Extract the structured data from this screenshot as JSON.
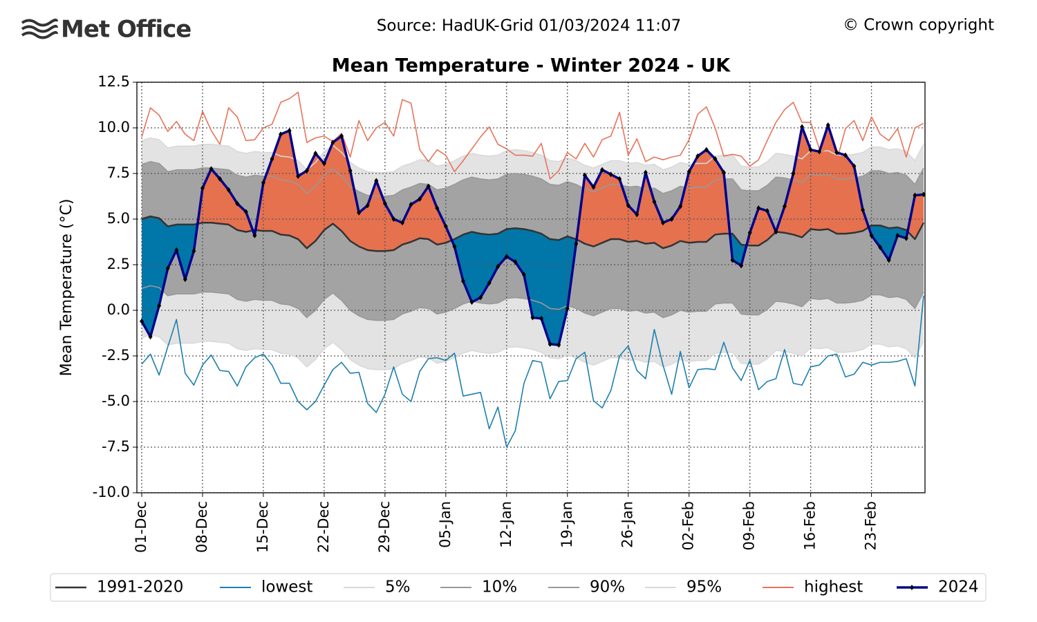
{
  "header": {
    "logo": "Met Office",
    "source": "Source: HadUK-Grid 01/03/2024 11:07",
    "copyright": "© Crown copyright"
  },
  "chart_data": {
    "type": "line",
    "title": "Mean Temperature - Winter 2024 - UK",
    "y_label": "Mean Temperature (°C)",
    "categories": [
      "01-Dec",
      null,
      null,
      null,
      null,
      null,
      null,
      "08-Dec",
      null,
      null,
      null,
      null,
      null,
      null,
      "15-Dec",
      null,
      null,
      null,
      null,
      null,
      null,
      "22-Dec",
      null,
      null,
      null,
      null,
      null,
      null,
      "29-Dec",
      null,
      null,
      null,
      null,
      null,
      null,
      "05-Jan",
      null,
      null,
      null,
      null,
      null,
      null,
      "12-Jan",
      null,
      null,
      null,
      null,
      null,
      null,
      "19-Jan",
      null,
      null,
      null,
      null,
      null,
      null,
      "26-Jan",
      null,
      null,
      null,
      null,
      null,
      null,
      "02-Feb",
      null,
      null,
      null,
      null,
      null,
      null,
      "09-Feb",
      null,
      null,
      null,
      null,
      null,
      null,
      "16-Feb",
      null,
      null,
      null,
      null,
      null,
      null,
      "23-Feb",
      null,
      null,
      null,
      null,
      null,
      null
    ],
    "ylim": [
      -10,
      12.5
    ],
    "yticks": [
      {
        "value": -10,
        "label": "-10.0"
      },
      -7.5,
      {
        "value": -5,
        "label": "-5.0"
      },
      -2.5,
      {
        "value": 0,
        "label": "0.0"
      },
      2.5,
      {
        "value": 5,
        "label": "5.0"
      },
      7.5,
      {
        "value": 10,
        "label": "10.0"
      },
      12.5
    ],
    "grid": true,
    "fill_colors": {
      "above": "#e5714f",
      "below": "#0077a8",
      "outer_band": "#e3e3e3",
      "inner_band": "#a3a3a3"
    },
    "series": [
      {
        "name": "1991-2020",
        "color": "#333333",
        "values": [
          5.0,
          5.15,
          5.05,
          4.6,
          4.7,
          4.7,
          4.7,
          4.8,
          4.8,
          4.75,
          4.7,
          4.4,
          4.3,
          4.4,
          4.35,
          4.35,
          4.15,
          4.1,
          3.9,
          3.4,
          3.8,
          4.4,
          4.75,
          4.35,
          3.8,
          3.5,
          3.3,
          3.25,
          3.25,
          3.3,
          3.6,
          3.75,
          3.95,
          3.9,
          3.6,
          3.7,
          3.9,
          4.15,
          4.3,
          4.2,
          4.15,
          4.2,
          4.45,
          4.5,
          4.45,
          4.35,
          4.2,
          3.9,
          3.85,
          4.05,
          3.9,
          3.65,
          3.5,
          3.7,
          3.9,
          3.9,
          3.75,
          3.8,
          3.65,
          3.7,
          3.4,
          3.55,
          3.8,
          3.7,
          3.75,
          3.75,
          4.15,
          4.2,
          4.2,
          3.6,
          3.55,
          3.55,
          3.85,
          4.3,
          4.25,
          4.15,
          4.0,
          4.45,
          4.4,
          4.45,
          4.2,
          4.2,
          4.25,
          4.35,
          4.65,
          4.65,
          4.5,
          4.55,
          4.4,
          3.9,
          4.8
        ]
      },
      {
        "name": "lowest",
        "color": "#1c7fae",
        "values": [
          -2.95,
          -2.4,
          -3.55,
          -2.0,
          -0.5,
          -3.45,
          -4.1,
          -3.0,
          -2.45,
          -3.3,
          -3.35,
          -4.15,
          -3.1,
          -2.6,
          -2.4,
          -3.0,
          -4.0,
          -4.0,
          -5.0,
          -5.45,
          -5.0,
          -4.1,
          -3.25,
          -2.85,
          -3.45,
          -3.4,
          -5.1,
          -5.6,
          -4.6,
          -3.1,
          -4.6,
          -5.0,
          -3.35,
          -2.65,
          -2.6,
          -2.75,
          -2.35,
          -4.7,
          -4.6,
          -4.5,
          -6.5,
          -5.3,
          -7.5,
          -6.6,
          -4.0,
          -2.75,
          -2.85,
          -4.85,
          -3.9,
          -3.85,
          -2.65,
          -2.3,
          -4.95,
          -5.35,
          -4.4,
          -2.5,
          -1.95,
          -3.3,
          -3.75,
          -1.05,
          -3.0,
          -4.6,
          -2.25,
          -4.25,
          -3.25,
          -3.2,
          -3.25,
          -1.75,
          -3.15,
          -3.85,
          -2.75,
          -4.35,
          -3.9,
          -3.75,
          -2.15,
          -4.0,
          -4.1,
          -3.1,
          -3.0,
          -2.5,
          -2.4,
          -3.65,
          -3.5,
          -2.85,
          -3.0,
          -2.85,
          -2.85,
          -2.8,
          -2.65,
          -4.15,
          0.8
        ]
      },
      {
        "name": "5%",
        "color": "#d9d9d9",
        "values": [
          -1.5,
          -1.35,
          -1.45,
          -1.9,
          -1.8,
          -1.8,
          -1.8,
          -1.7,
          -1.7,
          -1.75,
          -1.8,
          -2.1,
          -2.2,
          -2.1,
          -2.15,
          -2.15,
          -2.35,
          -2.4,
          -2.6,
          -3.1,
          -2.7,
          -2.1,
          -1.75,
          -2.15,
          -2.7,
          -3.0,
          -3.2,
          -3.25,
          -3.25,
          -3.2,
          -2.9,
          -2.75,
          -2.55,
          -2.6,
          -2.9,
          -2.8,
          -2.6,
          -2.35,
          -2.2,
          -2.3,
          -2.35,
          -2.3,
          -2.05,
          -2.0,
          -2.05,
          -2.15,
          -2.3,
          -2.6,
          -2.65,
          -2.45,
          -2.6,
          -2.85,
          -3.0,
          -2.8,
          -2.6,
          -2.6,
          -2.75,
          -2.7,
          -2.85,
          -2.8,
          -3.1,
          -2.95,
          -2.7,
          -2.8,
          -2.75,
          -2.75,
          -2.35,
          -2.3,
          -2.3,
          -2.9,
          -2.95,
          -2.95,
          -2.65,
          -2.2,
          -2.25,
          -2.35,
          -2.5,
          -2.05,
          -2.1,
          -2.05,
          -2.3,
          -2.3,
          -2.25,
          -2.15,
          -1.85,
          -1.85,
          -2.0,
          -1.95,
          -2.1,
          -2.6,
          -1.7
        ]
      },
      {
        "name": "10%",
        "color": "#999999",
        "values": [
          1.2,
          1.35,
          1.25,
          0.8,
          0.9,
          0.9,
          0.9,
          1.0,
          1.0,
          0.95,
          0.9,
          0.6,
          0.5,
          0.6,
          0.55,
          0.55,
          0.35,
          0.3,
          0.1,
          -0.4,
          0.0,
          0.6,
          0.95,
          0.55,
          0.0,
          -0.3,
          -0.5,
          -0.55,
          -0.55,
          -0.5,
          -0.2,
          -0.05,
          0.15,
          0.1,
          -0.2,
          -0.1,
          0.1,
          0.35,
          0.5,
          0.4,
          0.35,
          0.4,
          0.65,
          0.7,
          0.65,
          0.55,
          0.4,
          0.1,
          0.05,
          0.25,
          0.1,
          -0.15,
          -0.3,
          -0.1,
          0.1,
          0.1,
          -0.05,
          0.0,
          -0.15,
          -0.1,
          -0.4,
          -0.25,
          0.0,
          -0.1,
          -0.05,
          -0.05,
          0.35,
          0.4,
          0.4,
          -0.2,
          -0.25,
          -0.25,
          0.05,
          0.5,
          0.45,
          0.35,
          0.2,
          0.65,
          0.6,
          0.65,
          0.4,
          0.4,
          0.45,
          0.55,
          0.85,
          0.85,
          0.7,
          0.75,
          0.6,
          0.1,
          1.0
        ]
      },
      {
        "name": "90%",
        "color": "#999999",
        "values": [
          8.0,
          8.15,
          8.05,
          7.6,
          7.7,
          7.7,
          7.7,
          7.8,
          7.8,
          7.75,
          7.7,
          7.4,
          7.3,
          7.4,
          7.35,
          7.35,
          7.15,
          7.1,
          6.9,
          6.4,
          6.8,
          7.4,
          7.75,
          7.35,
          6.8,
          6.5,
          6.3,
          6.25,
          6.25,
          6.3,
          6.6,
          6.75,
          6.95,
          6.9,
          6.6,
          6.7,
          6.9,
          7.15,
          7.3,
          7.2,
          7.15,
          7.2,
          7.45,
          7.5,
          7.45,
          7.35,
          7.2,
          6.9,
          6.85,
          7.05,
          6.9,
          6.65,
          6.5,
          6.7,
          6.9,
          6.9,
          6.75,
          6.8,
          6.65,
          6.7,
          6.4,
          6.55,
          6.8,
          6.7,
          6.75,
          6.75,
          7.15,
          7.2,
          7.2,
          6.6,
          6.55,
          6.55,
          6.85,
          7.3,
          7.25,
          7.15,
          7.0,
          7.45,
          7.4,
          7.45,
          7.2,
          7.2,
          7.25,
          7.35,
          7.65,
          7.65,
          7.5,
          7.55,
          7.4,
          6.9,
          7.8
        ]
      },
      {
        "name": "95%",
        "color": "#d9d9d9",
        "values": [
          9.3,
          9.45,
          9.35,
          8.9,
          9.0,
          9.0,
          9.0,
          9.1,
          9.1,
          9.05,
          9.0,
          8.7,
          8.6,
          8.7,
          8.65,
          8.65,
          8.45,
          8.4,
          8.2,
          7.7,
          8.1,
          8.7,
          9.05,
          8.65,
          8.1,
          7.8,
          7.6,
          7.55,
          7.55,
          7.6,
          7.9,
          8.05,
          8.25,
          8.2,
          7.9,
          8.0,
          8.2,
          8.45,
          8.6,
          8.5,
          8.45,
          8.5,
          8.75,
          8.8,
          8.75,
          8.65,
          8.5,
          8.2,
          8.15,
          8.35,
          8.2,
          7.95,
          7.8,
          8.0,
          8.2,
          8.2,
          8.05,
          8.1,
          7.95,
          8.0,
          7.7,
          7.85,
          8.1,
          8.0,
          8.05,
          8.05,
          8.45,
          8.5,
          8.5,
          7.9,
          7.85,
          7.85,
          8.15,
          8.6,
          8.55,
          8.45,
          8.3,
          8.75,
          8.7,
          8.75,
          8.5,
          8.5,
          8.55,
          8.65,
          8.95,
          8.95,
          8.8,
          8.85,
          8.7,
          8.2,
          9.1
        ]
      },
      {
        "name": "highest",
        "color": "#e8735a",
        "values": [
          9.5,
          11.1,
          10.7,
          9.8,
          10.35,
          9.65,
          9.3,
          10.9,
          9.85,
          9.1,
          11.1,
          10.6,
          9.3,
          9.35,
          10.0,
          10.2,
          11.4,
          11.6,
          11.95,
          9.2,
          9.45,
          9.55,
          9.25,
          9.7,
          8.4,
          10.4,
          9.3,
          10.0,
          10.3,
          9.55,
          11.55,
          11.35,
          8.8,
          8.15,
          8.8,
          8.5,
          7.6,
          8.2,
          8.85,
          9.5,
          10.05,
          9.1,
          8.85,
          8.5,
          8.5,
          8.45,
          9.15,
          7.2,
          7.65,
          8.65,
          8.3,
          9.15,
          8.4,
          9.35,
          9.55,
          10.85,
          8.5,
          9.4,
          8.15,
          8.4,
          8.25,
          8.4,
          8.5,
          9.35,
          10.75,
          11.15,
          10.0,
          8.45,
          8.55,
          8.45,
          7.9,
          8.25,
          9.3,
          10.3,
          11.0,
          11.4,
          10.3,
          10.3,
          8.85,
          8.55,
          8.2,
          9.95,
          10.4,
          9.3,
          10.6,
          9.65,
          9.3,
          9.95,
          8.4,
          10.0,
          10.25
        ]
      },
      {
        "name": "2024",
        "color": "#00008b",
        "marker": "diamond",
        "values": [
          -0.6,
          -1.45,
          0.25,
          2.3,
          3.3,
          1.7,
          3.25,
          6.7,
          7.75,
          7.2,
          6.6,
          5.85,
          5.4,
          4.1,
          7.0,
          8.3,
          9.65,
          9.85,
          7.35,
          7.65,
          8.6,
          8.05,
          9.2,
          9.55,
          7.65,
          5.35,
          5.75,
          7.1,
          5.85,
          5.0,
          4.8,
          5.8,
          6.1,
          6.8,
          5.6,
          4.6,
          3.5,
          1.6,
          0.45,
          0.7,
          1.5,
          2.4,
          2.95,
          2.65,
          1.95,
          -0.4,
          -0.45,
          -1.85,
          -1.9,
          0.1,
          3.65,
          7.4,
          6.75,
          7.7,
          7.45,
          7.2,
          5.75,
          5.25,
          7.55,
          5.95,
          4.8,
          5.0,
          5.7,
          7.6,
          8.45,
          8.8,
          8.3,
          7.55,
          2.75,
          2.45,
          4.25,
          5.6,
          5.45,
          4.3,
          5.7,
          7.5,
          10.05,
          8.8,
          8.7,
          10.15,
          8.65,
          8.5,
          7.9,
          5.5,
          4.1,
          3.45,
          2.75,
          4.1,
          3.95,
          6.3,
          6.35
        ]
      }
    ]
  }
}
